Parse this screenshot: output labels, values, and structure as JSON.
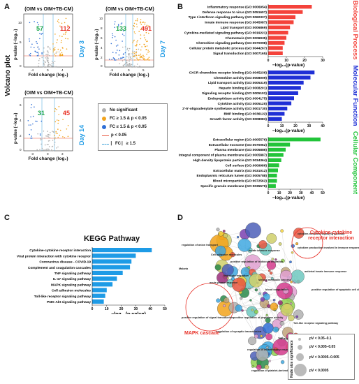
{
  "panelA": {
    "letter": "A",
    "side_title": "Volcano plot",
    "plots": [
      {
        "title": "(OIM vs OIM+TB-CM)",
        "down": "57",
        "up": "112",
        "day": "Day 3",
        "xticks": [
          "-4",
          "0",
          "4"
        ]
      },
      {
        "title": "(OIM vs OIM+TB-CM)",
        "down": "133",
        "up": "491",
        "day": "Day 7",
        "xticks": [
          "-5",
          "0",
          "5"
        ]
      },
      {
        "title": "(OIM vs OIM+TB-CM)",
        "down": "31",
        "up": "45",
        "day": "Day 14",
        "xticks": [
          "-3",
          "0",
          "3"
        ]
      }
    ],
    "ylabel": "p-value (−log₁₀)",
    "xlabel": "Fold change (log₂)",
    "yticks1": [
      "10",
      "5",
      "0"
    ],
    "yticks2": [
      "10",
      "8",
      "6",
      "4",
      "2",
      "0"
    ],
    "yticks3": [
      "6",
      "4",
      "2",
      "0"
    ],
    "legend": [
      {
        "label": "No significant",
        "color": "#b0b0b0"
      },
      {
        "label": "FC ≥ 1.5 & p < 0.05",
        "color": "#f2a31b"
      },
      {
        "label": "FC ≤ 1.5 & p < 0.05",
        "color": "#2f6fd6"
      },
      {
        "label": "p < 0.05",
        "color": "#e8563f"
      },
      {
        "label": "⎸FC ⎸≥ 1.5",
        "color": "#3aa0d8"
      }
    ]
  },
  "panelB": {
    "letter": "B",
    "xlabel": "−log₁₀(p-value)",
    "groups": [
      {
        "name": "Biological Process",
        "color": "#f4433b",
        "items": [
          {
            "label": "Inflammatory response (GO:0006954)",
            "value": 24
          },
          {
            "label": "Defense response to virus (GO:0051607)",
            "value": 19
          },
          {
            "label": "Type I interferon signaling pathway (GO:0060337)",
            "value": 15
          },
          {
            "label": "Innate immune response (GO:0045087)",
            "value": 14
          },
          {
            "label": "Lipid transport (GO:0006869)",
            "value": 12
          },
          {
            "label": "Cytokine-mediated signaling pathway (GO:0019221)",
            "value": 11
          },
          {
            "label": "Chemotaxis (GO:0006935)",
            "value": 10
          },
          {
            "label": "Chemokine signaling pathway (GO:0070098)",
            "value": 9
          },
          {
            "label": "Cellular protein metabolic process (GO:0044267)",
            "value": 8
          },
          {
            "label": "Signal transduction (GO:0007165)",
            "value": 8
          }
        ],
        "ticks": [
          "0",
          "10",
          "20",
          "30"
        ],
        "max": 30
      },
      {
        "name": "Molecular Function",
        "color": "#1f2fd6",
        "items": [
          {
            "label": "CXCR chemokine receptor binding (GO:0045236)",
            "value": 34
          },
          {
            "label": "Chemokine activity (GO:0008009)",
            "value": 31
          },
          {
            "label": "Lipid transport activity (GO:0005319)",
            "value": 26
          },
          {
            "label": "Heparin binding (GO:0008201)",
            "value": 24
          },
          {
            "label": "Signaling receptor binding (GO:0005102)",
            "value": 22
          },
          {
            "label": "Endopeptidase activity (GO:0004175)",
            "value": 19
          },
          {
            "label": "Cytokine activity (GO:0005125)",
            "value": 17
          },
          {
            "label": "2'-5'-oligoadenylate synthetase activity (GO:0001730)",
            "value": 14
          },
          {
            "label": "BMP binding (GO:0036122)",
            "value": 12
          },
          {
            "label": "Growth factor activity (GO:0008083)",
            "value": 10
          }
        ],
        "ticks": [
          "0",
          "10",
          "20",
          "30",
          "40"
        ],
        "max": 40
      },
      {
        "name": "Cellular Component",
        "color": "#22c43a",
        "items": [
          {
            "label": "Extracellular region (GO:0005576)",
            "value": 48
          },
          {
            "label": "Extracellular exosome (GO:0070062)",
            "value": 20
          },
          {
            "label": "Plasma membrane (GO:0005886)",
            "value": 16
          },
          {
            "label": "Integral component of plasma membrane (GO:0005887)",
            "value": 14
          },
          {
            "label": "High density lipoprotein particle (GO:0034364)",
            "value": 12
          },
          {
            "label": "Cell surface (GO:0009986)",
            "value": 10
          },
          {
            "label": "Extracellular matrix (GO:0031012)",
            "value": 9
          },
          {
            "label": "Endoplasmic reticulum lumen (GO:0005788)",
            "value": 8
          },
          {
            "label": "Blood microparticle (GO:0072562)",
            "value": 8
          },
          {
            "label": "Specific granule membrane (GO:0035579)",
            "value": 7
          }
        ],
        "ticks": [
          "0",
          "10",
          "20",
          "30",
          "40",
          "50"
        ],
        "max": 50
      }
    ]
  },
  "panelC": {
    "letter": "C",
    "title": "KEGG Pathway",
    "xlabel": "−log₁₀(p-value)",
    "ticks": [
      "0",
      "10",
      "20",
      "30",
      "40",
      "50"
    ],
    "max": 50,
    "color": "#1e9be6",
    "items": [
      {
        "label": "Cytokine-cytokine receptor interaction",
        "value": 41
      },
      {
        "label": "Viral protein interaction with cytokine receptor",
        "value": 30
      },
      {
        "label": "Coronavirus disease - COVID-19",
        "value": 27
      },
      {
        "label": "Complement and coagulation cascades",
        "value": 26
      },
      {
        "label": "TNF signaling pathway",
        "value": 21
      },
      {
        "label": "IL-17 signaling pathway",
        "value": 17
      },
      {
        "label": "MAPK signaling pathway",
        "value": 14
      },
      {
        "label": "Cell adhesion molecules",
        "value": 10
      },
      {
        "label": "Toll-like receptor signaling pathway",
        "value": 9
      },
      {
        "label": "PI3K-Akt signaling pathway",
        "value": 8
      }
    ]
  },
  "panelD": {
    "letter": "D",
    "callout1": "Cytokine-cytokine receptor interaction",
    "callout2": "MAPK cascade",
    "legend_title": "Node size significance",
    "legend": [
      "pV < 0.05–0.1",
      "pV < 0.005–0.05",
      "pV < 0.0005–0.005",
      "pV < 0.0005"
    ],
    "labels": [
      "regulation of anion transport",
      "Cell adhesion molecules",
      "innate immune response",
      "cytokine-mediated signaling pathway",
      "cytokine production involved in immune response",
      "antiviral innate immune response",
      "positive regulation of apoptotic cell clearance",
      "Malaria",
      "leukocyte migration",
      "acute-phase response",
      "positive regulation of leukocyte migration",
      "Toll-like receptor signaling pathway",
      "TNF signaling pathway",
      "regulation of apoptotic process",
      "positive regulation of signal transduction",
      "regulation of synaptic transmission",
      "positive regulation of peptidase activity",
      "regulation of inflammatory response",
      "regulation of platelet-derived growth factor production",
      "steroid metabolic process",
      "blood coagulation"
    ]
  }
}
